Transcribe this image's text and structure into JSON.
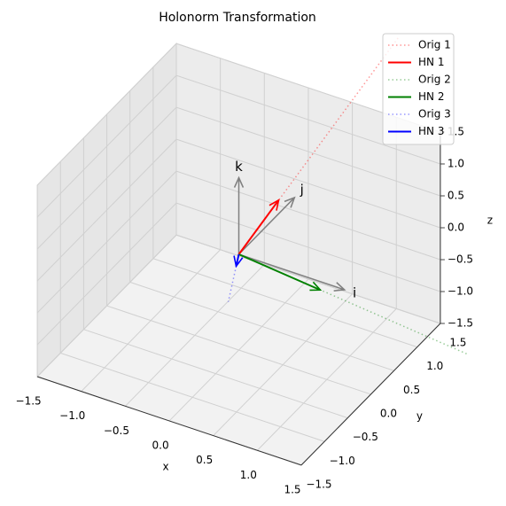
{
  "chart_data": {
    "type": "vector3d",
    "title": "Holonorm Transformation",
    "xlabel": "x",
    "ylabel": "y",
    "zlabel": "z",
    "xlim": [
      -1.5,
      1.5
    ],
    "ylim": [
      -1.5,
      1.5
    ],
    "zlim": [
      -1.5,
      1.5
    ],
    "xticks": [
      {
        "value": -1.5,
        "label": "−1.5"
      },
      {
        "value": -1.0,
        "label": "−1.0"
      },
      {
        "value": -0.5,
        "label": "−0.5"
      },
      {
        "value": 0,
        "label": "0.0"
      },
      0.5,
      {
        "value": 1.0,
        "label": "1.0"
      },
      1.5
    ],
    "yticks": [
      {
        "value": -1.5,
        "label": "−1.5"
      },
      {
        "value": -1.0,
        "label": "−1.0"
      },
      {
        "value": -0.5,
        "label": "−0.5"
      },
      {
        "value": 0,
        "label": "0.0"
      },
      0.5,
      {
        "value": 1.0,
        "label": "1.0"
      },
      1.5
    ],
    "zticks": [
      {
        "value": -1.5,
        "label": "−1.5"
      },
      {
        "value": -1.0,
        "label": "−1.0"
      },
      {
        "value": -0.5,
        "label": "−0.5"
      },
      {
        "value": 0,
        "label": "0.0"
      },
      0.5,
      {
        "value": 1.0,
        "label": "1.0"
      },
      1.5
    ],
    "grid": true,
    "legend": "upper right",
    "basis": {
      "color": "#808080",
      "vectors": [
        {
          "label": "i",
          "x": [
            0,
            1.2
          ],
          "y": [
            0,
            0
          ],
          "z": [
            0,
            0
          ]
        },
        {
          "label": "j",
          "x": [
            0,
            0
          ],
          "y": [
            0,
            1.2
          ],
          "z": [
            0,
            0
          ]
        },
        {
          "label": "k",
          "x": [
            0,
            0
          ],
          "y": [
            0,
            0
          ],
          "z": [
            0,
            1.2
          ]
        }
      ]
    },
    "series": [
      {
        "name": "Orig 1",
        "color": "#ff0000",
        "linestyle": "dotted",
        "alpha": 0.4,
        "x": [
          0,
          0.4
        ],
        "y": [
          0,
          2.7
        ],
        "z": [
          0,
          1.6
        ]
      },
      {
        "name": "HN 1",
        "color": "#ff0000",
        "linestyle": "solid",
        "arrow": true,
        "x": [
          0,
          0.1
        ],
        "y": [
          0,
          0.67
        ],
        "z": [
          0,
          0.4
        ]
      },
      {
        "name": "Orig 2",
        "color": "#008000",
        "linestyle": "dotted",
        "alpha": 0.4,
        "x": [
          0,
          2.52
        ],
        "y": [
          0,
          0.14
        ],
        "z": [
          0,
          -0.5
        ]
      },
      {
        "name": "HN 2",
        "color": "#008000",
        "linestyle": "solid",
        "arrow": true,
        "x": [
          0,
          0.9
        ],
        "y": [
          0,
          0.05
        ],
        "z": [
          0,
          -0.18
        ]
      },
      {
        "name": "Orig 3",
        "color": "#0000ff",
        "linestyle": "dotted",
        "alpha": 0.4,
        "x": [
          0,
          -0.12
        ],
        "y": [
          0,
          0
        ],
        "z": [
          0,
          -0.8
        ]
      },
      {
        "name": "HN 3",
        "color": "#0000ff",
        "linestyle": "solid",
        "arrow": true,
        "x": [
          0,
          -0.03
        ],
        "y": [
          0,
          0
        ],
        "z": [
          0,
          -0.2
        ]
      }
    ]
  }
}
